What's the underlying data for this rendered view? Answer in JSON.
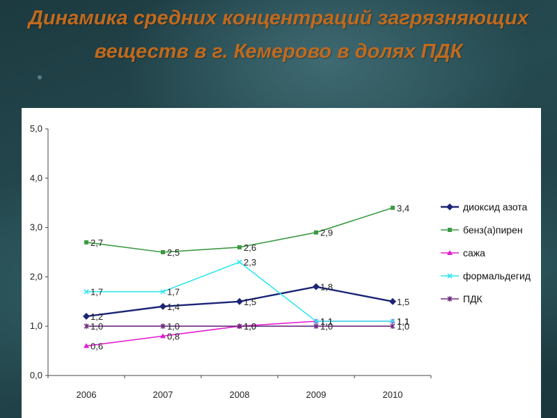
{
  "slide": {
    "title": "Динамика средних концентраций загрязняющих веществ в г. Кемерово в долях ПДК"
  },
  "chart_data": {
    "type": "line",
    "title": "",
    "xlabel": "",
    "ylabel": "",
    "categories": [
      "2006",
      "2007",
      "2008",
      "2009",
      "2010"
    ],
    "ylim": [
      0,
      5
    ],
    "y_ticks": [
      "0,0",
      "1,0",
      "2,0",
      "3,0",
      "4,0",
      "5,0"
    ],
    "grid": false,
    "legend_position": "right",
    "series": [
      {
        "name": "диоксид азота",
        "color": "#1b2476",
        "marker": "diamond",
        "values": [
          1.2,
          1.4,
          1.5,
          1.8,
          1.5
        ],
        "labels": [
          "1,2",
          "1,4",
          "1,5",
          "1,8",
          "1,5"
        ]
      },
      {
        "name": "бенз(а)пирен",
        "color": "#3c9a42",
        "marker": "square",
        "values": [
          2.7,
          2.5,
          2.6,
          2.9,
          3.4
        ],
        "labels": [
          "2,7",
          "2,5",
          "2,6",
          "2,9",
          "3,4"
        ]
      },
      {
        "name": "сажа",
        "color": "#e21bd0",
        "marker": "triangle",
        "values": [
          0.6,
          0.8,
          1.0,
          1.1,
          1.1
        ],
        "labels": [
          "0,6",
          "0,8",
          "1,0",
          "1,1",
          "1,1"
        ]
      },
      {
        "name": "формальдегид",
        "color": "#2fe6ee",
        "marker": "x",
        "values": [
          1.7,
          1.7,
          2.3,
          1.1,
          1.1
        ],
        "labels": [
          "1,7",
          "1,7",
          "2,3",
          "1,1",
          "1,1"
        ]
      },
      {
        "name": "ПДК",
        "color": "#6a2a7c",
        "marker": "star",
        "values": [
          1.0,
          1.0,
          1.0,
          1.0,
          1.0
        ],
        "labels": [
          "1,0",
          "1,0",
          "1,0",
          "1,0",
          "1,0"
        ]
      }
    ]
  }
}
